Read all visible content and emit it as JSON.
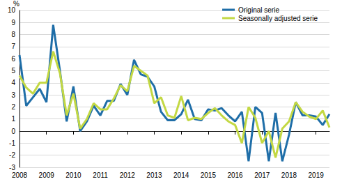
{
  "chart_data": {
    "type": "line",
    "y_label": "%",
    "categories": [
      "2008",
      null,
      null,
      null,
      "2009",
      null,
      null,
      null,
      "2010",
      null,
      null,
      null,
      "2011",
      null,
      null,
      null,
      "2012",
      null,
      null,
      null,
      "2013",
      null,
      null,
      null,
      "2014",
      null,
      null,
      null,
      "2015",
      null,
      null,
      null,
      "2016",
      null,
      null,
      null,
      "2017",
      null,
      null,
      null,
      "2018",
      null,
      null,
      null,
      "2019",
      null,
      null
    ],
    "series": [
      {
        "name": "Original serie",
        "color": "#1f6ea8",
        "values": [
          6.3,
          2.1,
          2.8,
          3.5,
          2.4,
          8.8,
          5.0,
          0.8,
          3.7,
          0.0,
          0.8,
          2.1,
          1.3,
          2.5,
          2.5,
          3.9,
          3.0,
          5.9,
          4.7,
          4.5,
          3.7,
          1.6,
          0.9,
          0.9,
          1.4,
          2.6,
          1.0,
          0.9,
          1.8,
          1.7,
          1.9,
          1.3,
          0.8,
          1.6,
          -2.5,
          2.0,
          1.5,
          -2.5,
          1.5,
          -2.5,
          -0.3,
          2.4,
          1.3,
          1.3,
          1.2,
          0.5,
          1.4
        ]
      },
      {
        "name": "Seasonally adjusted serie",
        "color": "#c3d843",
        "values": [
          4.6,
          3.6,
          3.1,
          4.0,
          4.0,
          6.6,
          4.8,
          1.3,
          3.1,
          0.2,
          1.0,
          2.3,
          1.8,
          1.8,
          2.7,
          3.8,
          3.3,
          5.4,
          5.0,
          4.6,
          2.3,
          2.8,
          1.3,
          1.1,
          2.9,
          0.9,
          1.1,
          1.0,
          1.5,
          1.9,
          1.3,
          0.8,
          0.5,
          -1.0,
          2.0,
          1.1,
          -1.0,
          0.0,
          -2.2,
          0.2,
          0.8,
          2.4,
          1.6,
          1.2,
          1.0,
          1.7,
          0.3
        ]
      }
    ],
    "ylim": [
      -3,
      10
    ],
    "yticks": [
      -3,
      -2,
      -1,
      0,
      1,
      2,
      3,
      4,
      5,
      6,
      7,
      8,
      9,
      10
    ],
    "grid": true,
    "legend": "upper right"
  }
}
